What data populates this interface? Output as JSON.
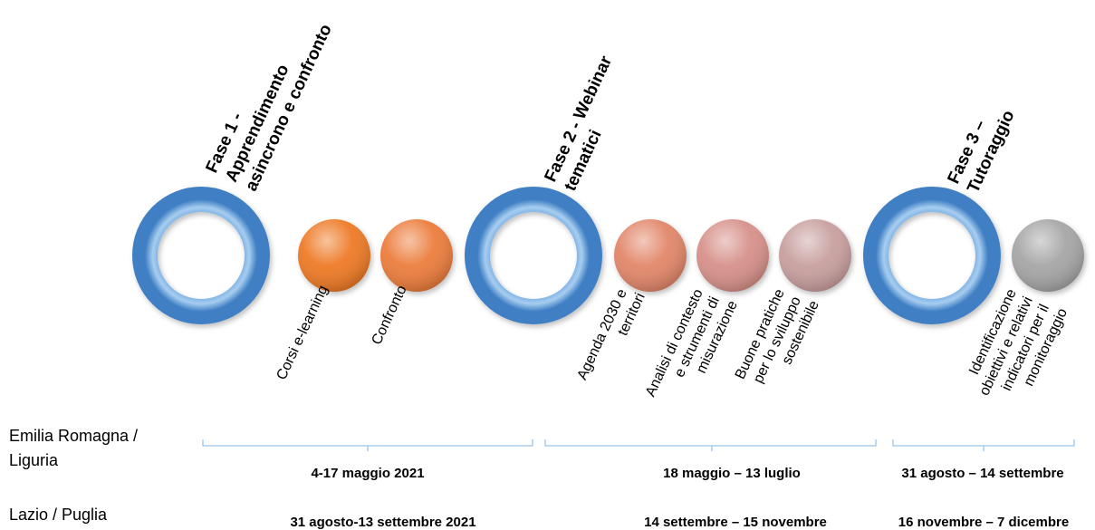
{
  "phases": [
    {
      "title_lines": [
        "Fase 1 -",
        "Apprendimento",
        "asincrono e confronto"
      ]
    },
    {
      "title_lines": [
        "Fase 2 - Webinar",
        "tematici"
      ]
    },
    {
      "title_lines": [
        "Fase 3 –",
        "Tutoraggio"
      ]
    }
  ],
  "steps": [
    {
      "label_lines": [
        "Corsi e-learning"
      ],
      "color": "#ee7a25"
    },
    {
      "label_lines": [
        "Confronto"
      ],
      "color": "#ec7d3c"
    },
    {
      "label_lines": [
        "Agenda 2030 e",
        "territori"
      ],
      "color": "#e2876a"
    },
    {
      "label_lines": [
        "Analisi di contesto",
        "e strumenti di",
        "misurazione"
      ],
      "color": "#d7918a"
    },
    {
      "label_lines": [
        "Buone pratiche",
        "per lo sviluppo",
        "sostenibile"
      ],
      "color": "#c8a09f"
    },
    {
      "label_lines": [
        "Identificazione",
        "obiettivi e relativi",
        "indicatori per il",
        "monitoraggio"
      ],
      "color": "#a6a6a6"
    }
  ],
  "ring_color": "#5b9bd5",
  "bracket_color": "#9dc3e6",
  "regions": [
    {
      "lines": [
        "Emilia Romagna /",
        "Liguria"
      ]
    },
    {
      "lines": [
        "Lazio / Puglia"
      ]
    }
  ],
  "dates_row1": [
    "4-17 maggio 2021",
    "18 maggio – 13 luglio",
    "31 agosto – 14 settembre"
  ],
  "dates_row2": [
    "31 agosto-13 settembre 2021",
    "14 settembre – 15 novembre",
    "16 novembre – 7 dicembre"
  ]
}
